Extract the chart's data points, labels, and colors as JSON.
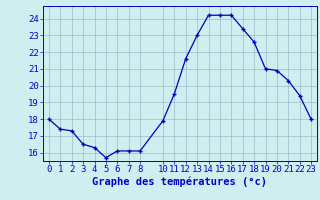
{
  "hours": [
    0,
    1,
    2,
    3,
    4,
    5,
    6,
    7,
    8,
    10,
    11,
    12,
    13,
    14,
    15,
    16,
    17,
    18,
    19,
    20,
    21,
    22,
    23
  ],
  "temps": [
    18.0,
    17.4,
    17.3,
    16.5,
    16.3,
    15.7,
    16.1,
    16.1,
    16.1,
    17.9,
    19.5,
    21.6,
    23.0,
    24.2,
    24.2,
    24.2,
    23.4,
    22.6,
    21.0,
    20.9,
    20.3,
    19.4,
    18.0
  ],
  "line_color": "#0000bb",
  "marker": "+",
  "bg_color": "#d0eef0",
  "grid_color": "#99bbcc",
  "ylabel_ticks": [
    16,
    17,
    18,
    19,
    20,
    21,
    22,
    23,
    24
  ],
  "xlabel": "Graphe des températures (°c)",
  "xlabel_color": "#0000cc",
  "axis_label_color": "#0000cc",
  "ylim": [
    15.5,
    24.75
  ],
  "xlim": [
    -0.5,
    23.5
  ],
  "xtick_positions": [
    0,
    1,
    2,
    3,
    4,
    5,
    6,
    7,
    8,
    10,
    11,
    12,
    13,
    14,
    15,
    16,
    17,
    18,
    19,
    20,
    21,
    22,
    23
  ],
  "xtick_labels": [
    "0",
    "1",
    "2",
    "3",
    "4",
    "5",
    "6",
    "7",
    "8",
    "10",
    "11",
    "12",
    "13",
    "14",
    "15",
    "16",
    "17",
    "18",
    "19",
    "20",
    "21",
    "22",
    "23"
  ],
  "font_size": 6.5,
  "xlabel_fontsize": 7.5,
  "marker_size": 3.5,
  "line_width": 0.9,
  "bottom_bar_color": "#2244aa"
}
